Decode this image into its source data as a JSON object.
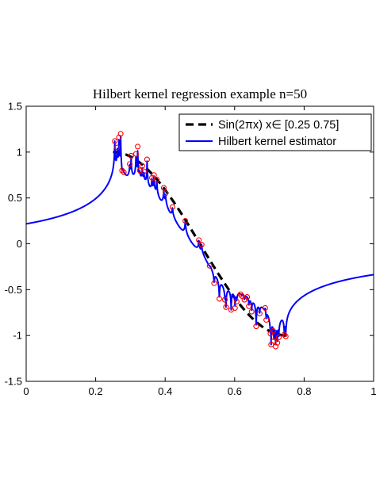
{
  "chart_data": {
    "type": "line",
    "title": "Hilbert kernel regression example n=50",
    "xlabel": "",
    "ylabel": "",
    "xlim": [
      0,
      1
    ],
    "ylim": [
      -1.5,
      1.5
    ],
    "x_ticks": [
      "0",
      "0.2",
      "0.4",
      "0.6",
      "0.8",
      "1"
    ],
    "y_ticks": [
      "1.5",
      "1",
      "0.5",
      "0",
      "-0.5",
      "-1",
      "-1.5"
    ],
    "grid": false,
    "legend_position": "top-right",
    "series": [
      {
        "name": "Sin(2πx)  x∈ [0.25 0.75]",
        "style": "dashed",
        "color": "#000000",
        "function": "sin(2*pi*x)",
        "x_range": [
          0.25,
          0.75
        ]
      },
      {
        "name": "Hilbert kernel estimator",
        "style": "solid",
        "color": "#0000ff",
        "x_range": [
          0,
          1
        ]
      }
    ],
    "sample_points": {
      "color": "#ff0000",
      "marker": "circle",
      "x": [
        0.255,
        0.262,
        0.267,
        0.272,
        0.276,
        0.281,
        0.298,
        0.302,
        0.316,
        0.321,
        0.327,
        0.334,
        0.339,
        0.348,
        0.362,
        0.368,
        0.376,
        0.396,
        0.401,
        0.421,
        0.458,
        0.497,
        0.505,
        0.528,
        0.541,
        0.556,
        0.572,
        0.575,
        0.59,
        0.601,
        0.606,
        0.617,
        0.621,
        0.628,
        0.636,
        0.641,
        0.649,
        0.662,
        0.672,
        0.688,
        0.691,
        0.703,
        0.705,
        0.711,
        0.713,
        0.718,
        0.723,
        0.727,
        0.743,
        0.747
      ],
      "y": [
        1.12,
        1.05,
        1.16,
        1.2,
        0.8,
        0.78,
        0.87,
        0.96,
        0.98,
        1.06,
        0.8,
        0.85,
        0.79,
        0.92,
        0.72,
        0.75,
        0.7,
        0.61,
        0.55,
        0.4,
        0.25,
        0.04,
        -0.01,
        -0.24,
        -0.43,
        -0.6,
        -0.61,
        -0.69,
        -0.72,
        -0.7,
        -0.63,
        -0.55,
        -0.57,
        -0.61,
        -0.58,
        -0.68,
        -0.74,
        -0.9,
        -0.76,
        -0.7,
        -0.83,
        -0.98,
        -1.1,
        -0.95,
        -1.06,
        -1.12,
        -1.08,
        -1.02,
        -0.99,
        -1.01
      ]
    }
  }
}
